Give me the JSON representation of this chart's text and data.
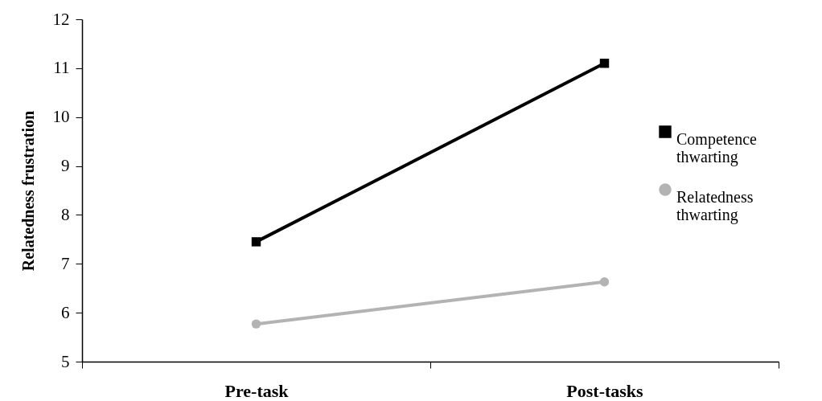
{
  "chart_data": {
    "type": "line",
    "ylabel": "Relatedness frustration",
    "categories": [
      "Pre-task",
      "Post-tasks"
    ],
    "series": [
      {
        "name": "Competence thwarting",
        "color": "#000000",
        "marker": "square",
        "values": [
          7.45,
          11.1
        ]
      },
      {
        "name": "Relatedness thwarting",
        "color": "#b3b3b3",
        "marker": "circle",
        "values": [
          5.77,
          6.63
        ]
      }
    ],
    "ylim": [
      5,
      12
    ],
    "yticks": [
      5,
      6,
      7,
      8,
      9,
      10,
      11,
      12
    ],
    "grid": false,
    "legend": "right"
  }
}
